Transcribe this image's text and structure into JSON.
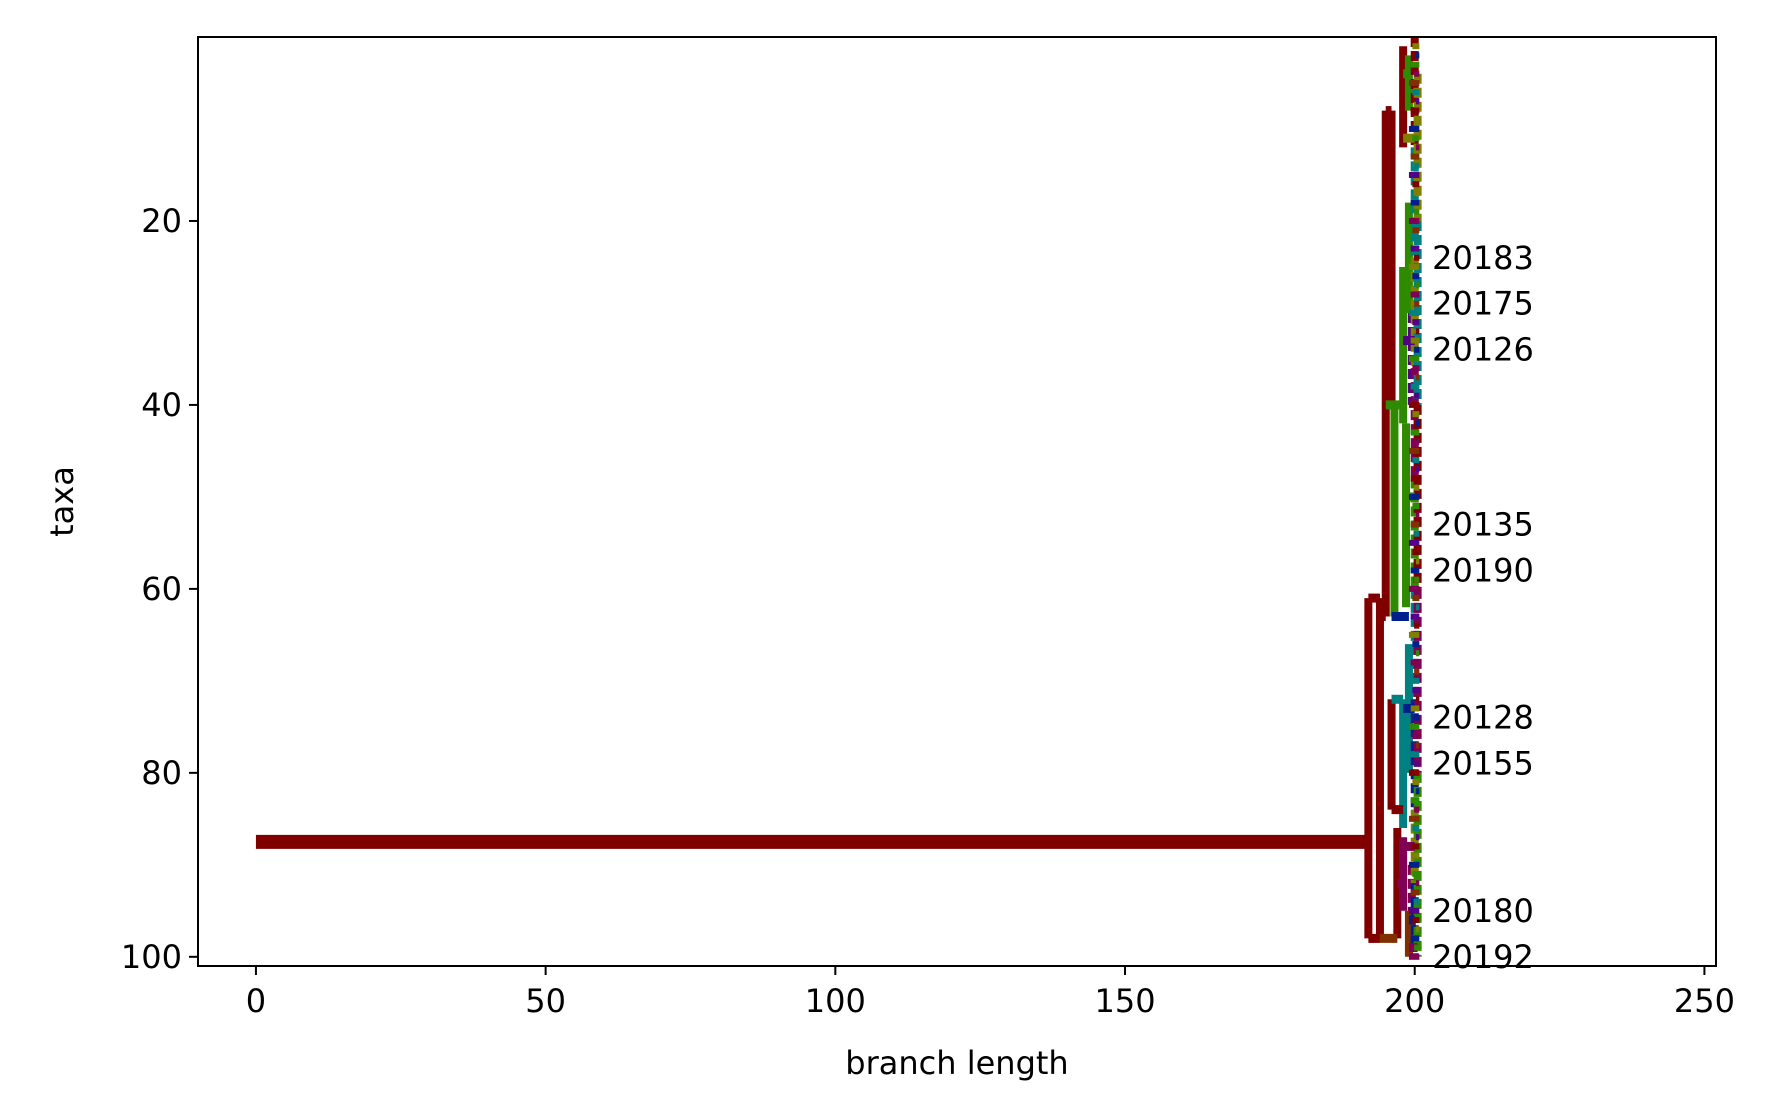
{
  "chart_data": {
    "type": "line",
    "title": "",
    "xlabel": "branch length",
    "ylabel": "taxa",
    "xlim": [
      -10,
      252
    ],
    "ylim": [
      101,
      0
    ],
    "y_inverted": true,
    "grid": false,
    "xticks": [
      0,
      50,
      100,
      150,
      200,
      250
    ],
    "yticks": [
      20,
      40,
      60,
      80,
      100
    ],
    "root": {
      "x": [
        0,
        192
      ],
      "y": 87.5,
      "color": "#800000"
    },
    "leaf_labels": [
      {
        "label": "20183",
        "y": 24
      },
      {
        "label": "20175",
        "y": 29
      },
      {
        "label": "20126",
        "y": 34
      },
      {
        "label": "20135",
        "y": 53
      },
      {
        "label": "20190",
        "y": 58
      },
      {
        "label": "20128",
        "y": 74
      },
      {
        "label": "20155",
        "y": 79
      },
      {
        "label": "20180",
        "y": 95
      },
      {
        "label": "20192",
        "y": 100
      }
    ],
    "branches": [
      {
        "x": 192,
        "y": [
          61,
          98
        ],
        "color": "#800000"
      },
      {
        "x": 194,
        "y": [
          61,
          98
        ],
        "color": "#800000"
      },
      {
        "x": 195,
        "y": [
          8,
          63
        ],
        "color": "#800000"
      },
      {
        "x": 196,
        "y": [
          8,
          40
        ],
        "color": "#800000"
      },
      {
        "x": 196.5,
        "y": [
          40,
          63
        ],
        "color": "#2E8B00"
      },
      {
        "x": 196,
        "y": [
          72,
          84
        ],
        "color": "#800000"
      },
      {
        "x": 197,
        "y": [
          86,
          98
        ],
        "color": "#800000"
      },
      {
        "x": 198,
        "y": [
          1,
          12
        ],
        "color": "#800000"
      },
      {
        "x": 198,
        "y": [
          25,
          42
        ],
        "color": "#2E8B00"
      },
      {
        "x": 198.5,
        "y": [
          42,
          62
        ],
        "color": "#2E8B00"
      },
      {
        "x": 198,
        "y": [
          72,
          86
        ],
        "color": "#008080"
      },
      {
        "x": 198,
        "y": [
          87,
          95
        ],
        "color": "#800055"
      },
      {
        "x": 199,
        "y": [
          2,
          8
        ],
        "color": "#2E8B00"
      },
      {
        "x": 199,
        "y": [
          18,
          30
        ],
        "color": "#2E8B00"
      },
      {
        "x": 199.5,
        "y": [
          30,
          40
        ],
        "color": "#550088"
      },
      {
        "x": 199,
        "y": [
          66,
          80
        ],
        "color": "#008080"
      },
      {
        "x": 199.5,
        "y": [
          90,
          97
        ],
        "color": "#800055"
      },
      {
        "x": 199,
        "y": [
          95,
          100
        ],
        "color": "#803000"
      },
      {
        "x": 200,
        "y": [
          0,
          12
        ],
        "color": "#800000"
      },
      {
        "x": 200,
        "y": [
          12,
          24
        ],
        "color": "#008080"
      },
      {
        "x": 200,
        "y": [
          24,
          36
        ],
        "color": "#808000"
      },
      {
        "x": 200,
        "y": [
          36,
          48
        ],
        "color": "#800055"
      },
      {
        "x": 200,
        "y": [
          48,
          60
        ],
        "color": "#2E8B00"
      },
      {
        "x": 200,
        "y": [
          60,
          72
        ],
        "color": "#008080"
      },
      {
        "x": 200,
        "y": [
          72,
          84
        ],
        "color": "#001E8C"
      },
      {
        "x": 200,
        "y": [
          84,
          92
        ],
        "color": "#808000"
      },
      {
        "x": 200,
        "y": [
          92,
          100
        ],
        "color": "#001E8C"
      },
      {
        "x": 200.5,
        "y": [
          4,
          20
        ],
        "color": "#808000"
      },
      {
        "x": 200.5,
        "y": [
          20,
          40
        ],
        "color": "#008080"
      },
      {
        "x": 200.5,
        "y": [
          40,
          60
        ],
        "color": "#800000"
      },
      {
        "x": 200.5,
        "y": [
          60,
          80
        ],
        "color": "#800055"
      },
      {
        "x": 200.5,
        "y": [
          80,
          100
        ],
        "color": "#2E8B00"
      }
    ],
    "horizontal_segments": [
      {
        "x": [
          192,
          194
        ],
        "y": 61,
        "color": "#800000"
      },
      {
        "x": [
          192,
          194
        ],
        "y": 98,
        "color": "#800000"
      },
      {
        "x": [
          194,
          195
        ],
        "y": 63,
        "color": "#800000"
      },
      {
        "x": [
          195,
          196
        ],
        "y": 8,
        "color": "#800000"
      },
      {
        "x": [
          195,
          198
        ],
        "y": 40,
        "color": "#2E8B00"
      },
      {
        "x": [
          194,
          197
        ],
        "y": 98,
        "color": "#803000"
      },
      {
        "x": [
          196,
          198
        ],
        "y": 72,
        "color": "#008080"
      },
      {
        "x": [
          196,
          198
        ],
        "y": 84,
        "color": "#800000"
      },
      {
        "x": [
          197,
          198
        ],
        "y": 92,
        "color": "#800055"
      },
      {
        "x": [
          198,
          199
        ],
        "y": 4,
        "color": "#2E8B00"
      },
      {
        "x": [
          198,
          200
        ],
        "y": 11,
        "color": "#808000"
      },
      {
        "x": [
          198,
          199
        ],
        "y": 26,
        "color": "#2E8B00"
      },
      {
        "x": [
          198,
          200
        ],
        "y": 33,
        "color": "#550088"
      },
      {
        "x": [
          198,
          200
        ],
        "y": 50,
        "color": "#2E8B00"
      },
      {
        "x": [
          196,
          199
        ],
        "y": 63,
        "color": "#001E8C"
      },
      {
        "x": [
          198,
          200
        ],
        "y": 73,
        "color": "#001E8C"
      },
      {
        "x": [
          198,
          200
        ],
        "y": 88,
        "color": "#800055"
      },
      {
        "x": [
          199,
          200
        ],
        "y": 96,
        "color": "#001E8C"
      },
      {
        "x": [
          199,
          200.5
        ],
        "y": 99,
        "color": "#800055"
      }
    ],
    "tip_colors": [
      "#800000",
      "#2E8B00",
      "#008080",
      "#808000",
      "#800055",
      "#550088",
      "#001E8C",
      "#803000"
    ]
  }
}
